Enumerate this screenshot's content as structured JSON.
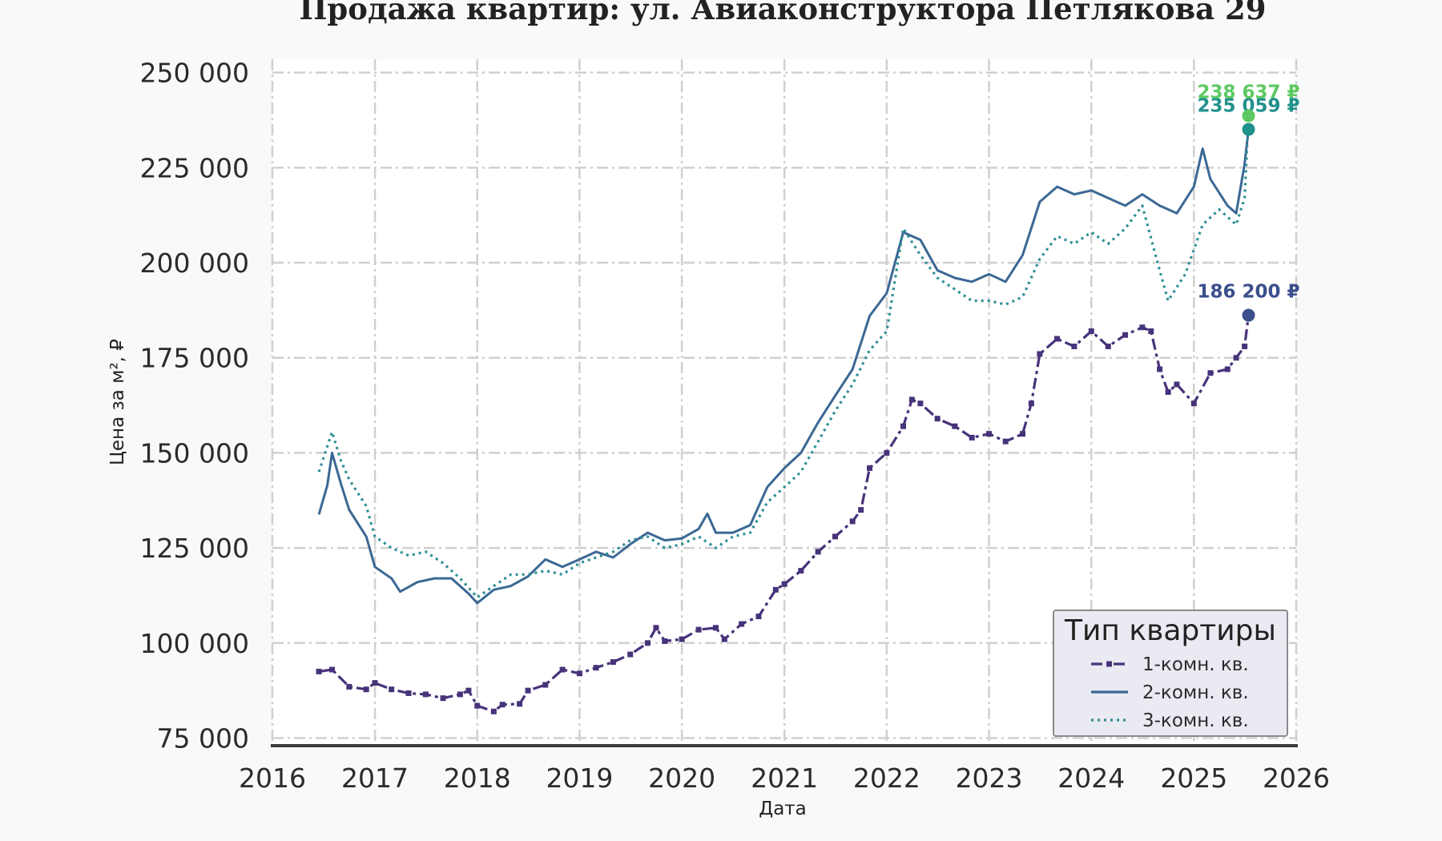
{
  "chart_data": {
    "type": "line",
    "title": "Продажа квартир: ул. Авиаконструктора Петлякова 29",
    "xlabel": "Дата",
    "ylabel": "Цена за м², ₽",
    "xlim": [
      "2016-01-01",
      "2026-01-01"
    ],
    "ylim": [
      73000,
      253500
    ],
    "x_ticks": [
      "2016",
      "2017",
      "2018",
      "2019",
      "2020",
      "2021",
      "2022",
      "2023",
      "2024",
      "2025",
      "2026"
    ],
    "y_ticks": [
      "250 000",
      "225 000",
      "200 000",
      "175 000",
      "150 000",
      "125 000",
      "100 000",
      "75 000"
    ],
    "grid": true,
    "legend_placement": "lower-right",
    "legend_title": "Тип квартиры",
    "series": [
      {
        "name": "1-комн. кв.",
        "color": "#47337a",
        "style": "dashdot-square-markers",
        "end_label": "186 200 ₽",
        "points": [
          [
            "2016-06-15",
            92500
          ],
          [
            "2016-08-01",
            93000
          ],
          [
            "2016-10-01",
            88500
          ],
          [
            "2016-12-01",
            87800
          ],
          [
            "2017-01-01",
            89500
          ],
          [
            "2017-03-01",
            87800
          ],
          [
            "2017-05-01",
            86800
          ],
          [
            "2017-07-01",
            86500
          ],
          [
            "2017-09-01",
            85500
          ],
          [
            "2017-11-01",
            86500
          ],
          [
            "2017-12-01",
            87500
          ],
          [
            "2018-01-01",
            83500
          ],
          [
            "2018-03-01",
            82000
          ],
          [
            "2018-04-01",
            83800
          ],
          [
            "2018-06-01",
            84000
          ],
          [
            "2018-07-01",
            87500
          ],
          [
            "2018-09-01",
            89000
          ],
          [
            "2018-11-01",
            93000
          ],
          [
            "2019-01-01",
            92000
          ],
          [
            "2019-03-01",
            93500
          ],
          [
            "2019-05-01",
            95000
          ],
          [
            "2019-07-01",
            97000
          ],
          [
            "2019-09-01",
            100000
          ],
          [
            "2019-10-01",
            104000
          ],
          [
            "2019-11-01",
            100500
          ],
          [
            "2020-01-01",
            101000
          ],
          [
            "2020-03-01",
            103500
          ],
          [
            "2020-05-01",
            104000
          ],
          [
            "2020-06-01",
            101000
          ],
          [
            "2020-08-01",
            105000
          ],
          [
            "2020-10-01",
            107000
          ],
          [
            "2020-12-01",
            114000
          ],
          [
            "2021-01-01",
            115500
          ],
          [
            "2021-03-01",
            119000
          ],
          [
            "2021-05-01",
            124000
          ],
          [
            "2021-07-01",
            128000
          ],
          [
            "2021-09-01",
            132000
          ],
          [
            "2021-10-01",
            135000
          ],
          [
            "2021-11-01",
            146000
          ],
          [
            "2022-01-01",
            150000
          ],
          [
            "2022-03-01",
            157000
          ],
          [
            "2022-04-01",
            164000
          ],
          [
            "2022-05-01",
            163000
          ],
          [
            "2022-07-01",
            159000
          ],
          [
            "2022-09-01",
            157000
          ],
          [
            "2022-11-01",
            154000
          ],
          [
            "2023-01-01",
            155000
          ],
          [
            "2023-03-01",
            153000
          ],
          [
            "2023-05-01",
            155000
          ],
          [
            "2023-06-01",
            163000
          ],
          [
            "2023-07-01",
            176000
          ],
          [
            "2023-09-01",
            180000
          ],
          [
            "2023-11-01",
            178000
          ],
          [
            "2024-01-01",
            182000
          ],
          [
            "2024-03-01",
            178000
          ],
          [
            "2024-05-01",
            181000
          ],
          [
            "2024-07-01",
            183000
          ],
          [
            "2024-08-01",
            182000
          ],
          [
            "2024-09-01",
            172000
          ],
          [
            "2024-10-01",
            166000
          ],
          [
            "2024-11-01",
            168000
          ],
          [
            "2025-01-01",
            163000
          ],
          [
            "2025-03-01",
            171000
          ],
          [
            "2025-05-01",
            172000
          ],
          [
            "2025-06-01",
            175000
          ],
          [
            "2025-07-01",
            178000
          ],
          [
            "2025-07-15",
            186200
          ]
        ]
      },
      {
        "name": "2-комн. кв.",
        "color": "#3b6894",
        "style": "solid",
        "end_label": "235 059 ₽",
        "points": [
          [
            "2016-06-15",
            133800
          ],
          [
            "2016-07-15",
            141500
          ],
          [
            "2016-08-01",
            150000
          ],
          [
            "2016-09-01",
            142000
          ],
          [
            "2016-10-01",
            135000
          ],
          [
            "2016-12-01",
            128000
          ],
          [
            "2017-01-01",
            120000
          ],
          [
            "2017-03-01",
            117000
          ],
          [
            "2017-04-01",
            113500
          ],
          [
            "2017-06-01",
            116000
          ],
          [
            "2017-08-01",
            117000
          ],
          [
            "2017-10-01",
            117000
          ],
          [
            "2017-12-01",
            113000
          ],
          [
            "2018-01-01",
            110500
          ],
          [
            "2018-03-01",
            114000
          ],
          [
            "2018-05-01",
            115000
          ],
          [
            "2018-07-01",
            117500
          ],
          [
            "2018-09-01",
            122000
          ],
          [
            "2018-11-01",
            120000
          ],
          [
            "2019-01-01",
            122000
          ],
          [
            "2019-03-01",
            124000
          ],
          [
            "2019-05-01",
            122500
          ],
          [
            "2019-07-01",
            126000
          ],
          [
            "2019-09-01",
            129000
          ],
          [
            "2019-11-01",
            127000
          ],
          [
            "2020-01-01",
            127500
          ],
          [
            "2020-03-01",
            130000
          ],
          [
            "2020-04-01",
            134000
          ],
          [
            "2020-05-01",
            129000
          ],
          [
            "2020-07-01",
            129000
          ],
          [
            "2020-09-01",
            131000
          ],
          [
            "2020-11-01",
            141000
          ],
          [
            "2021-01-01",
            146000
          ],
          [
            "2021-03-01",
            150000
          ],
          [
            "2021-05-01",
            158000
          ],
          [
            "2021-07-01",
            165000
          ],
          [
            "2021-09-01",
            172000
          ],
          [
            "2021-11-01",
            186000
          ],
          [
            "2022-01-01",
            192000
          ],
          [
            "2022-03-01",
            208000
          ],
          [
            "2022-05-01",
            206000
          ],
          [
            "2022-07-01",
            198000
          ],
          [
            "2022-09-01",
            196000
          ],
          [
            "2022-11-01",
            195000
          ],
          [
            "2023-01-01",
            197000
          ],
          [
            "2023-03-01",
            195000
          ],
          [
            "2023-05-01",
            202000
          ],
          [
            "2023-07-01",
            216000
          ],
          [
            "2023-09-01",
            220000
          ],
          [
            "2023-11-01",
            218000
          ],
          [
            "2024-01-01",
            219000
          ],
          [
            "2024-03-01",
            217000
          ],
          [
            "2024-05-01",
            215000
          ],
          [
            "2024-07-01",
            218000
          ],
          [
            "2024-09-01",
            215000
          ],
          [
            "2024-11-01",
            213000
          ],
          [
            "2025-01-01",
            220000
          ],
          [
            "2025-02-01",
            230000
          ],
          [
            "2025-03-01",
            222000
          ],
          [
            "2025-05-01",
            215000
          ],
          [
            "2025-06-01",
            213000
          ],
          [
            "2025-07-01",
            226000
          ],
          [
            "2025-07-15",
            235059
          ]
        ]
      },
      {
        "name": "3-комн. кв.",
        "color": "#2e8f95",
        "style": "dotted",
        "end_label": "238 637 ₽",
        "points": [
          [
            "2016-06-15",
            145000
          ],
          [
            "2016-08-01",
            155500
          ],
          [
            "2016-09-01",
            148000
          ],
          [
            "2016-10-01",
            143000
          ],
          [
            "2016-12-01",
            136000
          ],
          [
            "2017-01-01",
            128000
          ],
          [
            "2017-03-01",
            125000
          ],
          [
            "2017-05-01",
            123000
          ],
          [
            "2017-07-01",
            124000
          ],
          [
            "2017-09-01",
            121000
          ],
          [
            "2017-11-01",
            117000
          ],
          [
            "2018-01-01",
            112000
          ],
          [
            "2018-03-01",
            115000
          ],
          [
            "2018-05-01",
            118000
          ],
          [
            "2018-07-01",
            118000
          ],
          [
            "2018-09-01",
            119000
          ],
          [
            "2018-11-01",
            118000
          ],
          [
            "2019-01-01",
            121000
          ],
          [
            "2019-03-01",
            122500
          ],
          [
            "2019-05-01",
            124000
          ],
          [
            "2019-07-01",
            127000
          ],
          [
            "2019-09-01",
            128000
          ],
          [
            "2019-11-01",
            125000
          ],
          [
            "2020-01-01",
            126000
          ],
          [
            "2020-03-01",
            128000
          ],
          [
            "2020-05-01",
            125000
          ],
          [
            "2020-07-01",
            128000
          ],
          [
            "2020-09-01",
            129000
          ],
          [
            "2020-11-01",
            137000
          ],
          [
            "2021-01-01",
            141000
          ],
          [
            "2021-03-01",
            145000
          ],
          [
            "2021-05-01",
            153000
          ],
          [
            "2021-07-01",
            161000
          ],
          [
            "2021-09-01",
            168000
          ],
          [
            "2021-11-01",
            177000
          ],
          [
            "2022-01-01",
            182000
          ],
          [
            "2022-03-01",
            209000
          ],
          [
            "2022-05-01",
            202000
          ],
          [
            "2022-07-01",
            196000
          ],
          [
            "2022-09-01",
            193000
          ],
          [
            "2022-11-01",
            190000
          ],
          [
            "2023-01-01",
            190000
          ],
          [
            "2023-03-01",
            189000
          ],
          [
            "2023-05-01",
            191000
          ],
          [
            "2023-07-01",
            201000
          ],
          [
            "2023-09-01",
            207000
          ],
          [
            "2023-11-01",
            205000
          ],
          [
            "2024-01-01",
            208000
          ],
          [
            "2024-03-01",
            205000
          ],
          [
            "2024-05-01",
            209000
          ],
          [
            "2024-07-01",
            215000
          ],
          [
            "2024-09-01",
            198000
          ],
          [
            "2024-10-01",
            190000
          ],
          [
            "2024-12-01",
            197000
          ],
          [
            "2025-02-01",
            210000
          ],
          [
            "2025-04-01",
            214000
          ],
          [
            "2025-06-01",
            210000
          ],
          [
            "2025-07-01",
            217000
          ],
          [
            "2025-07-15",
            238637
          ]
        ]
      }
    ],
    "end_markers": [
      {
        "series": "1-комн. кв.",
        "date": "2025-07-15",
        "value": 186200,
        "color": "#3b4f8c",
        "label": "186 200 ₽"
      },
      {
        "series": "2-комн. кв.",
        "date": "2025-07-15",
        "value": 235059,
        "color": "#21918c",
        "label": "235 059 ₽"
      },
      {
        "series": "3-комн. кв.",
        "date": "2025-07-15",
        "value": 238637,
        "color": "#5ec962",
        "label": "238 637 ₽"
      }
    ]
  }
}
